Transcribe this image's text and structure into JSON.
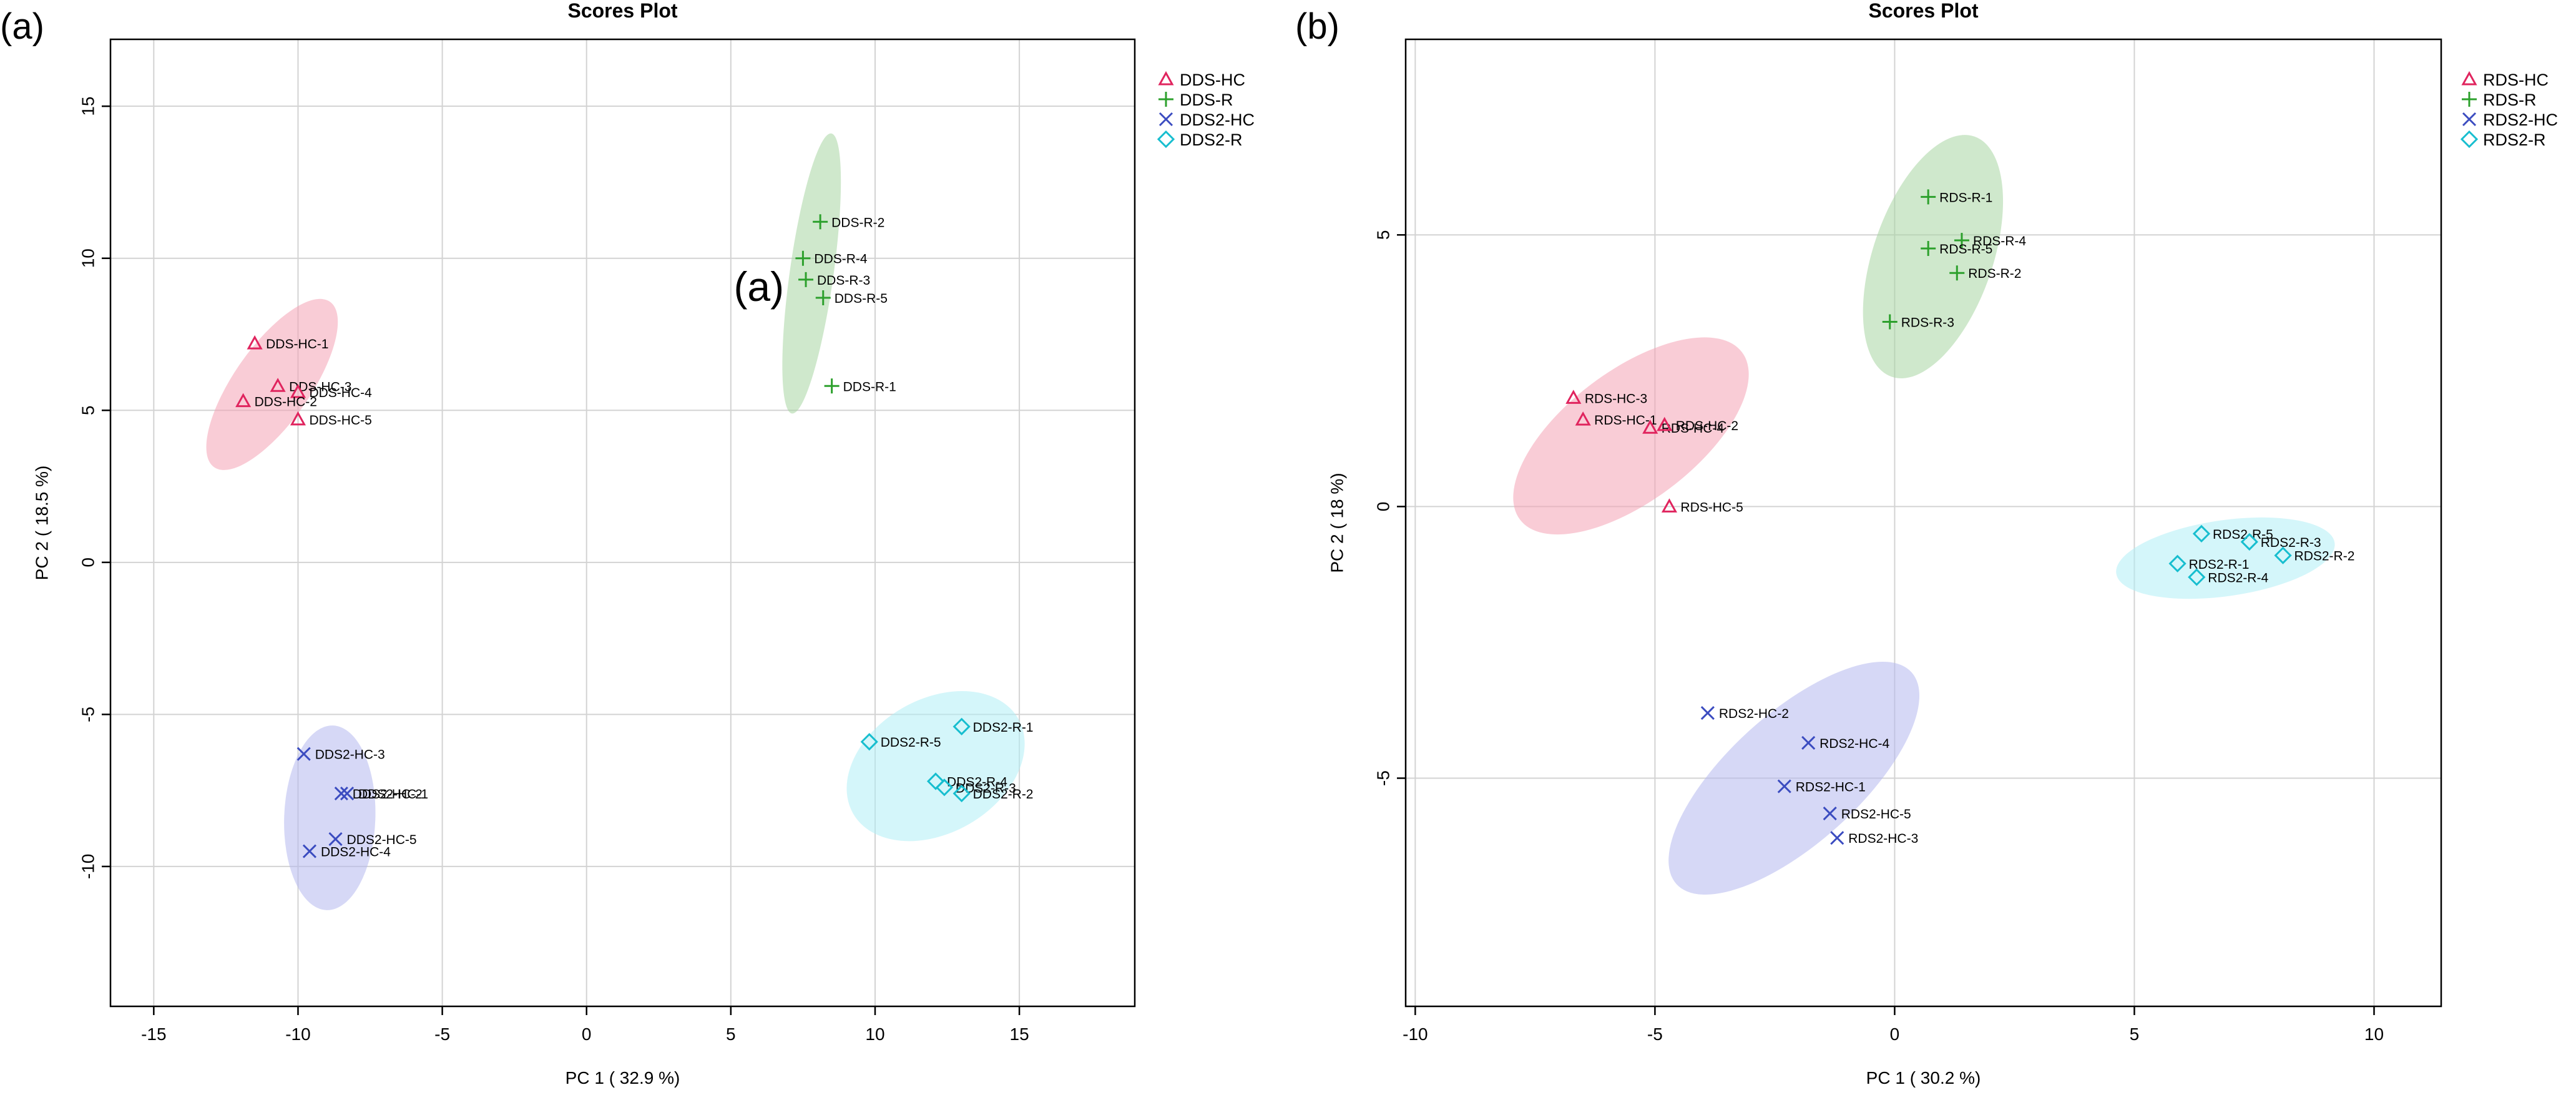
{
  "chart_data": [
    {
      "type": "scatter",
      "panel_label": "(a)",
      "title": "Scores Plot",
      "xlabel": "PC 1 ( 32.9 %)",
      "ylabel": "PC 2 ( 18.5 %)",
      "xlim": [
        -16.5,
        19
      ],
      "ylim": [
        -14.6,
        17.2
      ],
      "xticks": [
        -15,
        -10,
        -5,
        0,
        5,
        10,
        15
      ],
      "yticks": [
        -10,
        -5,
        0,
        5,
        10,
        15
      ],
      "grid": true,
      "legend_position": "right",
      "annotations": [
        {
          "text": "(a)",
          "x": 5.1,
          "y": 8.6
        }
      ],
      "series": [
        {
          "name": "DDS-HC",
          "marker": "triangle",
          "color": "#e0245e",
          "ellipse": "#f4a3b5",
          "ellipse_geom": {
            "cx": -10.9,
            "cy": 5.85,
            "rx": 3.5,
            "ry": 1.25,
            "angle": -55
          },
          "points": [
            {
              "label": "DDS-HC-1",
              "x": -11.5,
              "y": 7.2
            },
            {
              "label": "DDS-HC-3",
              "x": -10.7,
              "y": 5.8
            },
            {
              "label": "DDS-HC-4",
              "x": -10.0,
              "y": 5.6
            },
            {
              "label": "DDS-HC-2",
              "x": -11.9,
              "y": 5.3
            },
            {
              "label": "DDS-HC-5",
              "x": -10.0,
              "y": 4.7
            }
          ]
        },
        {
          "name": "DDS-R",
          "marker": "plus",
          "color": "#2ca02c",
          "ellipse": "#a8d5a2",
          "ellipse_geom": {
            "cx": 7.8,
            "cy": 9.5,
            "rx": 4.9,
            "ry": 0.72,
            "angle": -82
          },
          "points": [
            {
              "label": "DDS-R-2",
              "x": 8.1,
              "y": 11.2
            },
            {
              "label": "DDS-R-4",
              "x": 7.5,
              "y": 10.0
            },
            {
              "label": "DDS-R-3",
              "x": 7.6,
              "y": 9.3
            },
            {
              "label": "DDS-R-5",
              "x": 8.2,
              "y": 8.7
            },
            {
              "label": "DDS-R-1",
              "x": 8.5,
              "y": 5.8
            }
          ]
        },
        {
          "name": "DDS2-HC",
          "marker": "x",
          "color": "#3b4cc0",
          "ellipse": "#b5b8ee",
          "ellipse_geom": {
            "cx": -8.9,
            "cy": -8.4,
            "rx": 3.2,
            "ry": 1.5,
            "angle": -88
          },
          "points": [
            {
              "label": "DDS2-HC-3",
              "x": -9.8,
              "y": -6.3
            },
            {
              "label": "DDS2-HC-2",
              "x": -8.5,
              "y": -7.6
            },
            {
              "label": "DDS2-HC-1",
              "x": -8.3,
              "y": -7.6
            },
            {
              "label": "DDS2-HC-5",
              "x": -8.7,
              "y": -9.1
            },
            {
              "label": "DDS2-HC-4",
              "x": -9.6,
              "y": -9.5
            }
          ]
        },
        {
          "name": "DDS2-R",
          "marker": "diamond",
          "color": "#17becf",
          "ellipse": "#b0eef5",
          "ellipse_geom": {
            "cx": 12.1,
            "cy": -6.7,
            "rx": 3.3,
            "ry": 2.2,
            "angle": -30
          },
          "points": [
            {
              "label": "DDS2-R-1",
              "x": 13.0,
              "y": -5.4
            },
            {
              "label": "DDS2-R-5",
              "x": 9.8,
              "y": -5.9
            },
            {
              "label": "DDS2-R-4",
              "x": 12.1,
              "y": -7.2
            },
            {
              "label": "DDS2-R-3",
              "x": 12.4,
              "y": -7.4
            },
            {
              "label": "DDS2-R-2",
              "x": 13.0,
              "y": -7.6
            }
          ]
        }
      ]
    },
    {
      "type": "scatter",
      "panel_label": "(b)",
      "title": "Scores Plot",
      "xlabel": "PC 1 ( 30.2 %)",
      "ylabel": "PC 2 ( 18 %)",
      "xlim": [
        -10.2,
        11.4
      ],
      "ylim": [
        -9.2,
        8.6
      ],
      "xticks": [
        -10,
        -5,
        0,
        5,
        10
      ],
      "yticks": [
        -5,
        0,
        5
      ],
      "grid": true,
      "legend_position": "right",
      "annotations": [],
      "series": [
        {
          "name": "RDS-HC",
          "marker": "triangle",
          "color": "#e0245e",
          "ellipse": "#f4a3b5",
          "ellipse_geom": {
            "cx": -5.5,
            "cy": 1.3,
            "rx": 2.9,
            "ry": 1.2,
            "angle": -37
          },
          "points": [
            {
              "label": "RDS-HC-3",
              "x": -6.7,
              "y": 2.0
            },
            {
              "label": "RDS-HC-1",
              "x": -6.5,
              "y": 1.6
            },
            {
              "label": "RDS-HC-4",
              "x": -5.1,
              "y": 1.45
            },
            {
              "label": "RDS-HC-2",
              "x": -4.8,
              "y": 1.5
            },
            {
              "label": "RDS-HC-5",
              "x": -4.7,
              "y": 0.0
            }
          ]
        },
        {
          "name": "RDS-R",
          "marker": "plus",
          "color": "#2ca02c",
          "ellipse": "#a8d5a2",
          "ellipse_geom": {
            "cx": 0.8,
            "cy": 4.6,
            "rx": 2.65,
            "ry": 1.1,
            "angle": -71
          },
          "points": [
            {
              "label": "RDS-R-1",
              "x": 0.7,
              "y": 5.7
            },
            {
              "label": "RDS-R-4",
              "x": 1.4,
              "y": 4.9
            },
            {
              "label": "RDS-R-5",
              "x": 0.7,
              "y": 4.75
            },
            {
              "label": "RDS-R-2",
              "x": 1.3,
              "y": 4.3
            },
            {
              "label": "RDS-R-3",
              "x": -0.1,
              "y": 3.4
            }
          ]
        },
        {
          "name": "RDS2-HC",
          "marker": "x",
          "color": "#3b4cc0",
          "ellipse": "#b5b8ee",
          "ellipse_geom": {
            "cx": -2.1,
            "cy": -5.0,
            "rx": 3.3,
            "ry": 1.2,
            "angle": -42
          },
          "points": [
            {
              "label": "RDS2-HC-2",
              "x": -3.9,
              "y": -3.8
            },
            {
              "label": "RDS2-HC-4",
              "x": -1.8,
              "y": -4.35
            },
            {
              "label": "RDS2-HC-1",
              "x": -2.3,
              "y": -5.15
            },
            {
              "label": "RDS2-HC-5",
              "x": -1.35,
              "y": -5.65
            },
            {
              "label": "RDS2-HC-3",
              "x": -1.2,
              "y": -6.1
            }
          ]
        },
        {
          "name": "RDS2-R",
          "marker": "diamond",
          "color": "#17becf",
          "ellipse": "#b0eef5",
          "ellipse_geom": {
            "cx": 6.9,
            "cy": -0.95,
            "rx": 2.3,
            "ry": 0.7,
            "angle": -8
          },
          "points": [
            {
              "label": "RDS2-R-5",
              "x": 6.4,
              "y": -0.5
            },
            {
              "label": "RDS2-R-3",
              "x": 7.4,
              "y": -0.65
            },
            {
              "label": "RDS2-R-2",
              "x": 8.1,
              "y": -0.9
            },
            {
              "label": "RDS2-R-1",
              "x": 5.9,
              "y": -1.05
            },
            {
              "label": "RDS2-R-4",
              "x": 6.3,
              "y": -1.3
            }
          ]
        }
      ]
    }
  ]
}
